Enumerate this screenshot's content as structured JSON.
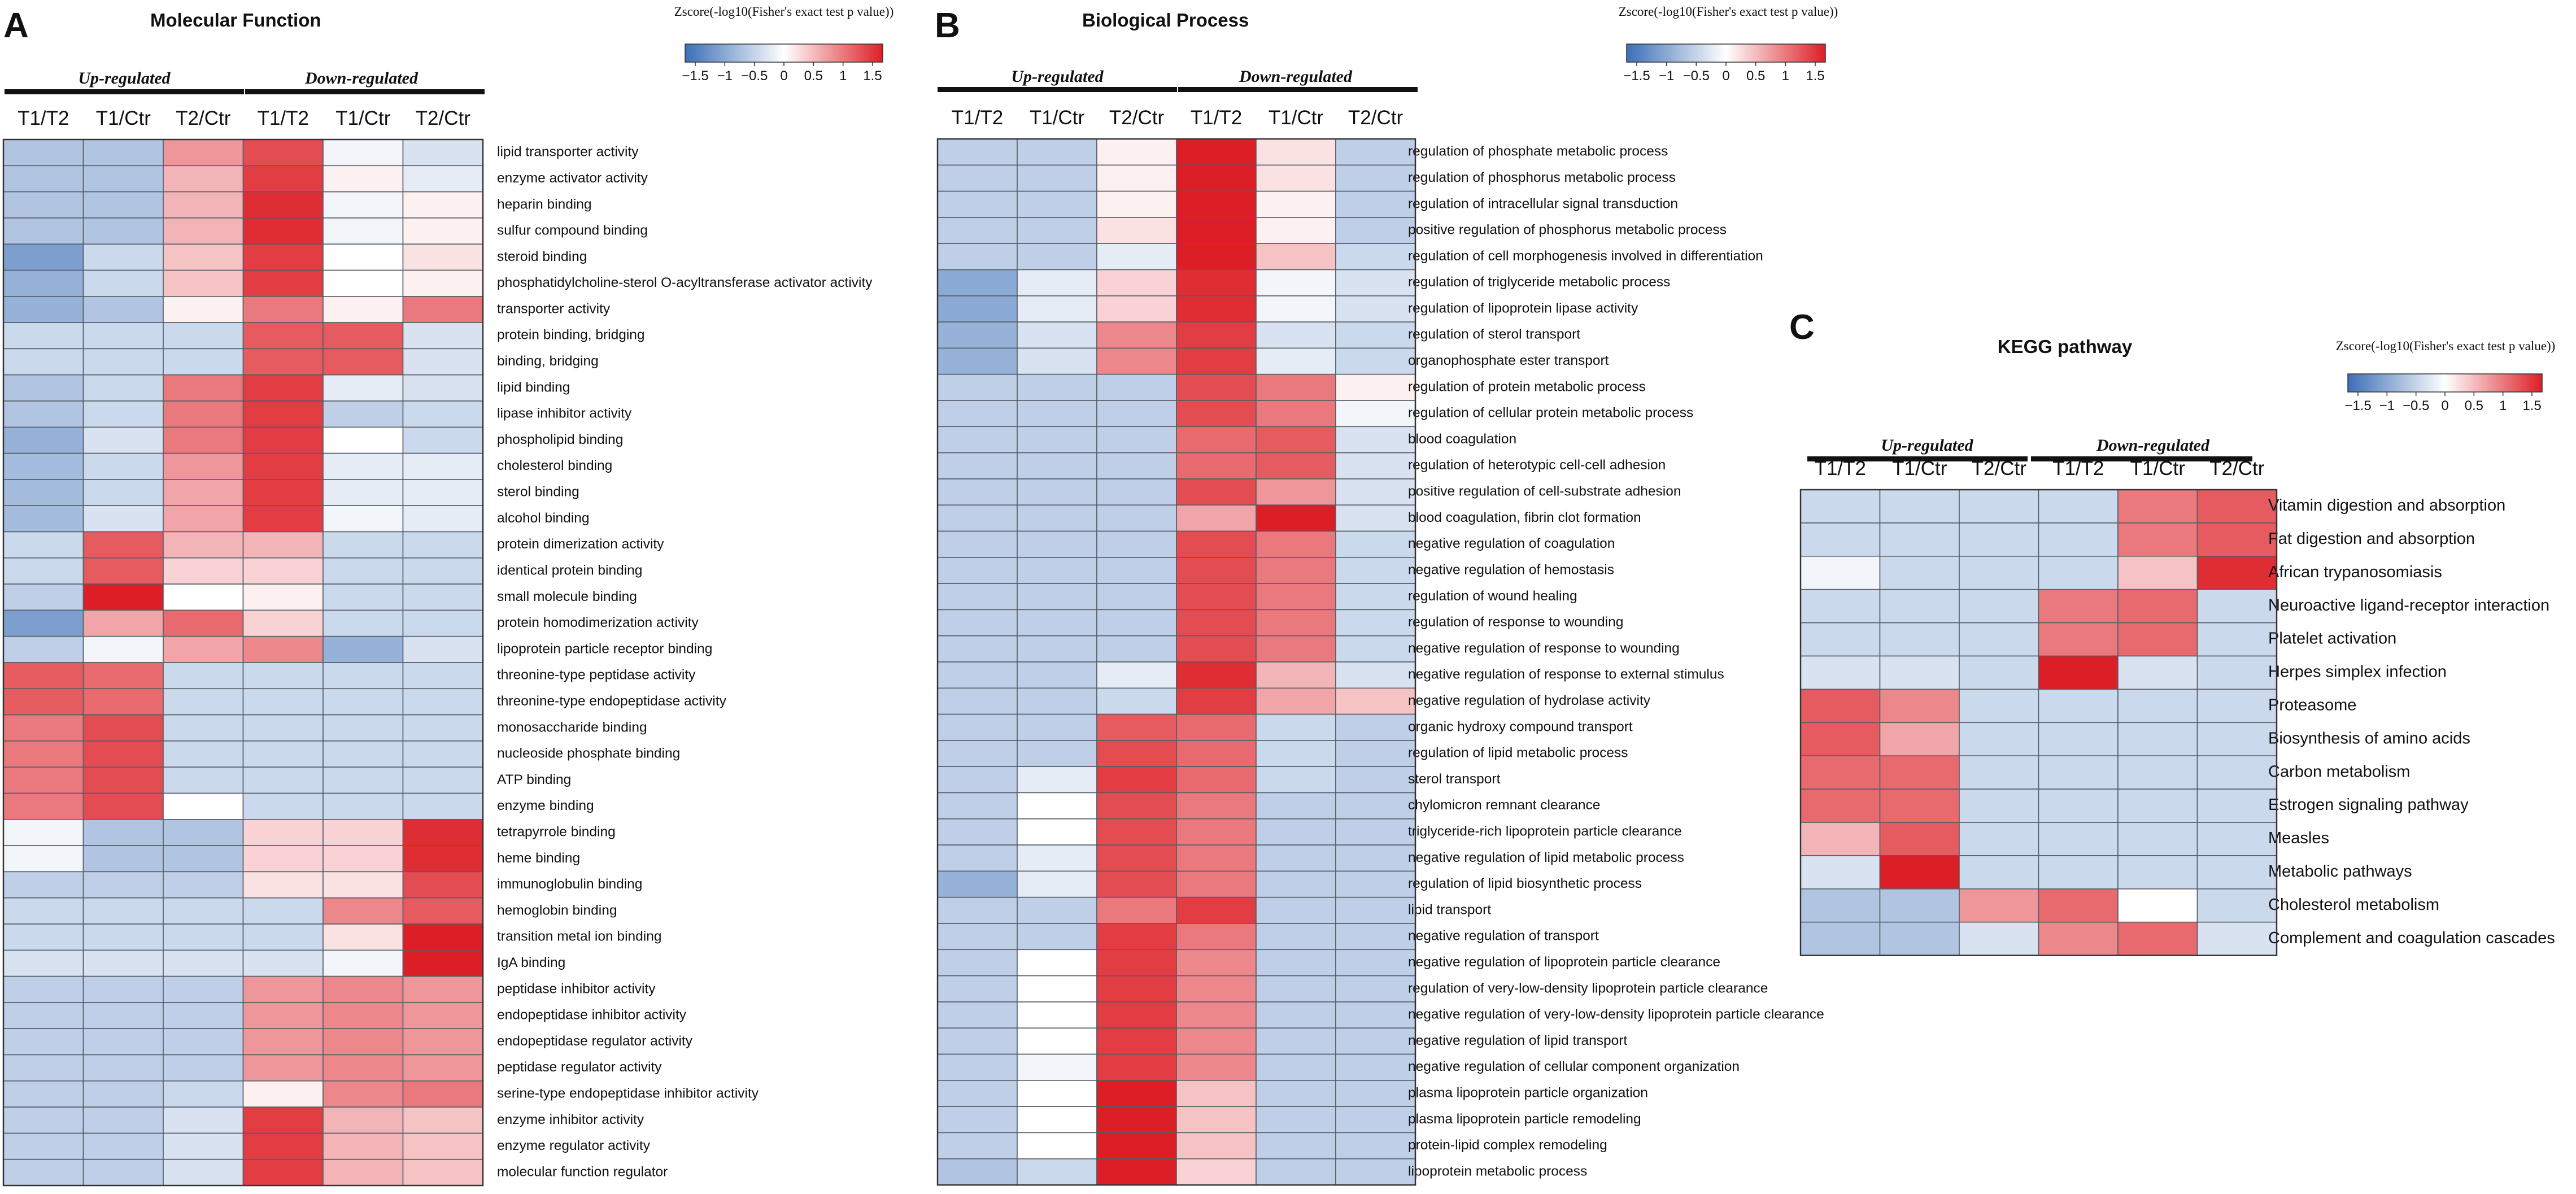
{
  "color_scale": {
    "min": -1.5,
    "max": 1.5,
    "low_color": "#3c6fb7",
    "mid_color": "#ffffff",
    "high_color": "#dc1f26"
  },
  "chart_data": [
    {
      "panel_letter": "A",
      "type": "heatmap",
      "title": "Molecular Function",
      "legend": {
        "title": "Zscore(-log10(Fisher's exact test p value))",
        "ticks": [
          "−1.5",
          "−1",
          "−0.5",
          "0",
          "0.5",
          "1",
          "1.5"
        ]
      },
      "groups": [
        "Up-regulated",
        "Down-regulated"
      ],
      "columns": [
        "T1/T2",
        "T1/Ctr",
        "T2/Ctr",
        "T1/T2",
        "T1/Ctr",
        "T2/Ctr"
      ],
      "rows": [
        "lipid transporter activity",
        "enzyme activator activity",
        "heparin binding",
        "sulfur compound binding",
        "steroid binding",
        "phosphatidylcholine-sterol O-acyltransferase activator activity",
        "transporter activity",
        "protein binding, bridging",
        "binding, bridging",
        "lipid binding",
        "lipase inhibitor activity",
        "phospholipid binding",
        "cholesterol binding",
        "sterol binding",
        "alcohol binding",
        "protein dimerization activity",
        "identical protein binding",
        "small molecule binding",
        "protein homodimerization activity",
        "lipoprotein particle receptor binding",
        "threonine-type peptidase activity",
        "threonine-type endopeptidase activity",
        "monosaccharide binding",
        "nucleoside phosphate binding",
        "ATP binding",
        "enzyme binding",
        "tetrapyrrole binding",
        "heme binding",
        "immunoglobulin binding",
        "hemoglobin binding",
        "transition metal ion binding",
        "IgA binding",
        "peptidase inhibitor activity",
        "endopeptidase inhibitor activity",
        "endopeptidase regulator activity",
        "peptidase regulator activity",
        "serine-type endopeptidase inhibitor activity",
        "enzyme inhibitor activity",
        "enzyme regulator activity",
        "molecular function regulator"
      ],
      "values": [
        [
          -0.6,
          -0.6,
          0.7,
          1.2,
          -0.1,
          -0.3
        ],
        [
          -0.6,
          -0.6,
          0.5,
          1.3,
          0.1,
          -0.2
        ],
        [
          -0.6,
          -0.6,
          0.5,
          1.4,
          -0.1,
          0.1
        ],
        [
          -0.6,
          -0.6,
          0.5,
          1.4,
          -0.1,
          0.1
        ],
        [
          -1.0,
          -0.4,
          0.4,
          1.3,
          0.0,
          0.2
        ],
        [
          -0.8,
          -0.4,
          0.4,
          1.3,
          0.0,
          0.1
        ],
        [
          -0.8,
          -0.6,
          0.1,
          0.9,
          0.1,
          0.9
        ],
        [
          -0.4,
          -0.4,
          -0.4,
          1.1,
          1.1,
          -0.3
        ],
        [
          -0.4,
          -0.4,
          -0.4,
          1.1,
          1.1,
          -0.3
        ],
        [
          -0.6,
          -0.4,
          0.9,
          1.3,
          -0.2,
          -0.3
        ],
        [
          -0.6,
          -0.4,
          0.9,
          1.3,
          -0.5,
          -0.4
        ],
        [
          -0.8,
          -0.3,
          0.9,
          1.3,
          0.0,
          -0.4
        ],
        [
          -0.7,
          -0.4,
          0.7,
          1.3,
          -0.2,
          -0.2
        ],
        [
          -0.7,
          -0.4,
          0.6,
          1.3,
          -0.2,
          -0.2
        ],
        [
          -0.7,
          -0.3,
          0.6,
          1.3,
          -0.1,
          -0.2
        ],
        [
          -0.4,
          1.1,
          0.5,
          0.5,
          -0.4,
          -0.4
        ],
        [
          -0.4,
          1.1,
          0.3,
          0.3,
          -0.4,
          -0.4
        ],
        [
          -0.5,
          1.5,
          0.0,
          0.1,
          -0.4,
          -0.4
        ],
        [
          -1.0,
          0.6,
          1.0,
          0.3,
          -0.4,
          -0.4
        ],
        [
          -0.5,
          -0.1,
          0.6,
          0.8,
          -0.8,
          -0.3
        ],
        [
          1.1,
          1.0,
          -0.4,
          -0.4,
          -0.4,
          -0.4
        ],
        [
          1.1,
          1.0,
          -0.4,
          -0.4,
          -0.4,
          -0.4
        ],
        [
          0.9,
          1.2,
          -0.4,
          -0.4,
          -0.4,
          -0.4
        ],
        [
          0.9,
          1.2,
          -0.4,
          -0.4,
          -0.4,
          -0.4
        ],
        [
          0.9,
          1.2,
          -0.4,
          -0.4,
          -0.4,
          -0.4
        ],
        [
          0.9,
          1.2,
          0.0,
          -0.4,
          -0.4,
          -0.4
        ],
        [
          -0.1,
          -0.6,
          -0.6,
          0.3,
          0.3,
          1.4
        ],
        [
          -0.1,
          -0.6,
          -0.6,
          0.3,
          0.3,
          1.4
        ],
        [
          -0.5,
          -0.5,
          -0.5,
          0.2,
          0.2,
          1.2
        ],
        [
          -0.4,
          -0.4,
          -0.4,
          -0.4,
          0.8,
          1.1
        ],
        [
          -0.4,
          -0.4,
          -0.4,
          -0.4,
          0.2,
          1.5
        ],
        [
          -0.3,
          -0.3,
          -0.3,
          -0.3,
          -0.1,
          1.5
        ],
        [
          -0.5,
          -0.5,
          -0.5,
          0.7,
          0.8,
          0.7
        ],
        [
          -0.5,
          -0.5,
          -0.5,
          0.7,
          0.8,
          0.7
        ],
        [
          -0.5,
          -0.5,
          -0.5,
          0.7,
          0.8,
          0.7
        ],
        [
          -0.5,
          -0.5,
          -0.5,
          0.7,
          0.8,
          0.7
        ],
        [
          -0.5,
          -0.5,
          -0.4,
          0.1,
          0.8,
          0.9
        ],
        [
          -0.5,
          -0.5,
          -0.3,
          1.3,
          0.5,
          0.4
        ],
        [
          -0.5,
          -0.5,
          -0.3,
          1.3,
          0.5,
          0.4
        ],
        [
          -0.5,
          -0.5,
          -0.3,
          1.3,
          0.5,
          0.4
        ]
      ]
    },
    {
      "panel_letter": "B",
      "type": "heatmap",
      "title": "Biological Process",
      "legend": {
        "title": "Zscore(-log10(Fisher's exact test p value))",
        "ticks": [
          "−1.5",
          "−1",
          "−0.5",
          "0",
          "0.5",
          "1",
          "1.5"
        ]
      },
      "groups": [
        "Up-regulated",
        "Down-regulated"
      ],
      "columns": [
        "T1/T2",
        "T1/Ctr",
        "T2/Ctr",
        "T1/T2",
        "T1/Ctr",
        "T2/Ctr"
      ],
      "rows": [
        "regulation of phosphate metabolic process",
        "regulation of phosphorus metabolic process",
        "regulation of intracellular signal transduction",
        "positive regulation of phosphorus metabolic process",
        "regulation of cell morphogenesis involved in differentiation",
        "regulation of triglyceride metabolic process",
        "regulation of lipoprotein lipase activity",
        "regulation of sterol transport",
        "organophosphate ester transport",
        "regulation of protein metabolic process",
        "regulation of cellular protein metabolic process",
        "blood coagulation",
        "regulation of heterotypic cell-cell adhesion",
        "positive regulation of cell-substrate adhesion",
        "blood coagulation, fibrin clot formation",
        "negative regulation of coagulation",
        "negative regulation of hemostasis",
        "regulation of wound healing",
        "regulation of response to wounding",
        "negative regulation of response to wounding",
        "negative regulation of response to external stimulus",
        "negative regulation of hydrolase activity",
        "organic hydroxy compound transport",
        "regulation of lipid metabolic process",
        "sterol transport",
        "chylomicron remnant clearance",
        "triglyceride-rich lipoprotein particle clearance",
        "negative regulation of lipid metabolic process",
        "regulation of lipid biosynthetic process",
        "lipid transport",
        "negative regulation of transport",
        "negative regulation of lipoprotein particle clearance",
        "regulation of very-low-density lipoprotein particle clearance",
        "negative regulation of very-low-density lipoprotein particle clearance",
        "negative regulation of lipid transport",
        "negative regulation of cellular component organization",
        "plasma lipoprotein particle organization",
        "plasma lipoprotein particle remodeling",
        "protein-lipid complex remodeling",
        "lipoprotein metabolic process"
      ],
      "values": [
        [
          -0.5,
          -0.5,
          0.1,
          1.5,
          0.2,
          -0.5
        ],
        [
          -0.5,
          -0.5,
          0.1,
          1.5,
          0.2,
          -0.5
        ],
        [
          -0.5,
          -0.5,
          0.1,
          1.5,
          0.1,
          -0.5
        ],
        [
          -0.5,
          -0.5,
          0.2,
          1.5,
          0.1,
          -0.5
        ],
        [
          -0.5,
          -0.5,
          -0.2,
          1.5,
          0.4,
          -0.4
        ],
        [
          -0.9,
          -0.2,
          0.3,
          1.4,
          -0.1,
          -0.3
        ],
        [
          -0.9,
          -0.2,
          0.3,
          1.4,
          -0.1,
          -0.3
        ],
        [
          -0.8,
          -0.3,
          0.8,
          1.3,
          -0.3,
          -0.4
        ],
        [
          -0.8,
          -0.3,
          0.8,
          1.3,
          -0.2,
          -0.4
        ],
        [
          -0.5,
          -0.5,
          -0.5,
          1.2,
          0.9,
          0.1
        ],
        [
          -0.5,
          -0.5,
          -0.5,
          1.2,
          0.9,
          -0.1
        ],
        [
          -0.5,
          -0.5,
          -0.5,
          1.0,
          1.1,
          -0.3
        ],
        [
          -0.5,
          -0.5,
          -0.5,
          1.0,
          1.1,
          -0.3
        ],
        [
          -0.5,
          -0.5,
          -0.5,
          1.2,
          0.7,
          -0.3
        ],
        [
          -0.5,
          -0.5,
          -0.5,
          0.6,
          1.5,
          -0.3
        ],
        [
          -0.5,
          -0.5,
          -0.5,
          1.2,
          0.9,
          -0.4
        ],
        [
          -0.5,
          -0.5,
          -0.5,
          1.2,
          0.9,
          -0.4
        ],
        [
          -0.5,
          -0.5,
          -0.5,
          1.2,
          0.9,
          -0.4
        ],
        [
          -0.5,
          -0.5,
          -0.5,
          1.2,
          0.9,
          -0.4
        ],
        [
          -0.5,
          -0.5,
          -0.5,
          1.2,
          0.9,
          -0.4
        ],
        [
          -0.5,
          -0.5,
          -0.2,
          1.4,
          0.5,
          -0.3
        ],
        [
          -0.5,
          -0.5,
          -0.4,
          1.3,
          0.6,
          0.4
        ],
        [
          -0.5,
          -0.5,
          1.1,
          1.0,
          -0.4,
          -0.5
        ],
        [
          -0.5,
          -0.5,
          1.2,
          1.0,
          -0.4,
          -0.5
        ],
        [
          -0.5,
          -0.2,
          1.3,
          1.0,
          -0.4,
          -0.5
        ],
        [
          -0.5,
          0.0,
          1.2,
          0.9,
          -0.5,
          -0.5
        ],
        [
          -0.5,
          0.0,
          1.2,
          0.9,
          -0.5,
          -0.5
        ],
        [
          -0.5,
          -0.2,
          1.2,
          0.9,
          -0.5,
          -0.5
        ],
        [
          -0.8,
          -0.2,
          1.2,
          0.9,
          -0.5,
          -0.5
        ],
        [
          -0.5,
          -0.5,
          0.9,
          1.3,
          -0.5,
          -0.5
        ],
        [
          -0.5,
          -0.5,
          1.3,
          0.9,
          -0.5,
          -0.5
        ],
        [
          -0.5,
          0.0,
          1.3,
          0.8,
          -0.5,
          -0.5
        ],
        [
          -0.5,
          0.0,
          1.3,
          0.8,
          -0.5,
          -0.5
        ],
        [
          -0.5,
          0.0,
          1.3,
          0.8,
          -0.5,
          -0.5
        ],
        [
          -0.5,
          0.0,
          1.3,
          0.8,
          -0.5,
          -0.5
        ],
        [
          -0.5,
          -0.1,
          1.3,
          0.8,
          -0.5,
          -0.5
        ],
        [
          -0.5,
          0.0,
          1.5,
          0.4,
          -0.5,
          -0.5
        ],
        [
          -0.5,
          0.0,
          1.5,
          0.4,
          -0.5,
          -0.5
        ],
        [
          -0.5,
          0.0,
          1.5,
          0.4,
          -0.5,
          -0.5
        ],
        [
          -0.6,
          -0.4,
          1.5,
          0.3,
          -0.5,
          -0.5
        ]
      ]
    },
    {
      "panel_letter": "C",
      "type": "heatmap",
      "title": "KEGG pathway",
      "legend": {
        "title": "Zscore(-log10(Fisher's exact test p value))",
        "ticks": [
          "−1.5",
          "−1",
          "−0.5",
          "0",
          "0.5",
          "1",
          "1.5"
        ]
      },
      "groups": [
        "Up-regulated",
        "Down-regulated"
      ],
      "columns": [
        "T1/T2",
        "T1/Ctr",
        "T2/Ctr",
        "T1/T2",
        "T1/Ctr",
        "T2/Ctr"
      ],
      "rows": [
        "Vitamin digestion and absorption",
        "Fat digestion and absorption",
        "African trypanosomiasis",
        "Neuroactive ligand-receptor interaction",
        "Platelet activation",
        "Herpes simplex infection",
        "Proteasome",
        "Biosynthesis of amino acids",
        "Carbon metabolism",
        "Estrogen signaling pathway",
        "Measles",
        "Metabolic pathways",
        "Cholesterol metabolism",
        "Complement and coagulation cascades"
      ],
      "values": [
        [
          -0.4,
          -0.4,
          -0.4,
          -0.4,
          0.9,
          1.1
        ],
        [
          -0.4,
          -0.4,
          -0.4,
          -0.4,
          0.9,
          1.1
        ],
        [
          -0.1,
          -0.4,
          -0.4,
          -0.4,
          0.4,
          1.4
        ],
        [
          -0.4,
          -0.4,
          -0.4,
          0.9,
          1.0,
          -0.4
        ],
        [
          -0.4,
          -0.4,
          -0.4,
          0.9,
          1.0,
          -0.4
        ],
        [
          -0.3,
          -0.3,
          -0.4,
          1.5,
          -0.3,
          -0.4
        ],
        [
          1.1,
          0.8,
          -0.4,
          -0.4,
          -0.4,
          -0.4
        ],
        [
          1.1,
          0.6,
          -0.4,
          -0.4,
          -0.4,
          -0.4
        ],
        [
          1.0,
          1.0,
          -0.4,
          -0.4,
          -0.4,
          -0.4
        ],
        [
          1.0,
          1.0,
          -0.4,
          -0.4,
          -0.4,
          -0.4
        ],
        [
          0.5,
          1.1,
          -0.4,
          -0.4,
          -0.4,
          -0.4
        ],
        [
          -0.3,
          1.5,
          -0.4,
          -0.4,
          -0.4,
          -0.4
        ],
        [
          -0.6,
          -0.6,
          0.7,
          1.0,
          0.0,
          -0.4
        ],
        [
          -0.6,
          -0.6,
          -0.3,
          0.8,
          1.0,
          -0.3
        ]
      ]
    }
  ]
}
